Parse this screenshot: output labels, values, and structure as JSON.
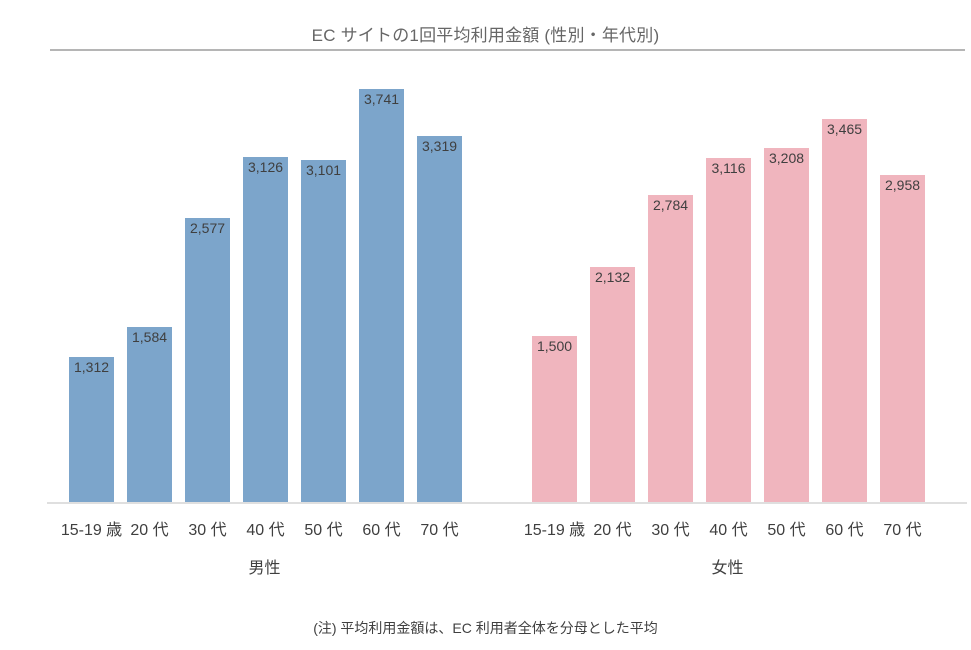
{
  "title": "EC サイトの1回平均利用金額 (性別・年代別)",
  "note": "(注) 平均利用金額は、EC 利用者全体を分母とした平均",
  "colors": {
    "male_bar": "#7ca5cb",
    "female_bar": "#f0b5be",
    "value_label": "#3f3f3f",
    "axis_label": "#3f3f3f",
    "title_text": "#666666",
    "title_rule": "#b5b5b5",
    "baseline": "#dfdfdf"
  },
  "chart_data": {
    "type": "bar",
    "title": "EC サイトの1回平均利用金額 (性別・年代別)",
    "categories": [
      "15-19 歳",
      "20 代",
      "30 代",
      "40 代",
      "50 代",
      "60 代",
      "70 代"
    ],
    "series": [
      {
        "key": "male",
        "name": "男性",
        "color": "#7ca5cb",
        "values": [
          1312,
          1584,
          2577,
          3126,
          3101,
          3741,
          3319
        ],
        "labels": [
          "1,312",
          "1,584",
          "2,577",
          "3,126",
          "3,101",
          "3,741",
          "3,319"
        ]
      },
      {
        "key": "female",
        "name": "女性",
        "color": "#f0b5be",
        "values": [
          1500,
          2132,
          2784,
          3116,
          3208,
          3465,
          2958
        ],
        "labels": [
          "1,500",
          "2,132",
          "2,784",
          "3,116",
          "3,208",
          "3,465",
          "2,958"
        ]
      }
    ],
    "xlabel": "",
    "ylabel": "",
    "ylim": [
      0,
      3741
    ],
    "grid": false,
    "legend": "none",
    "value_labels": "inside-top",
    "annotation": "(注) 平均利用金額は、EC 利用者全体を分母とした平均"
  }
}
